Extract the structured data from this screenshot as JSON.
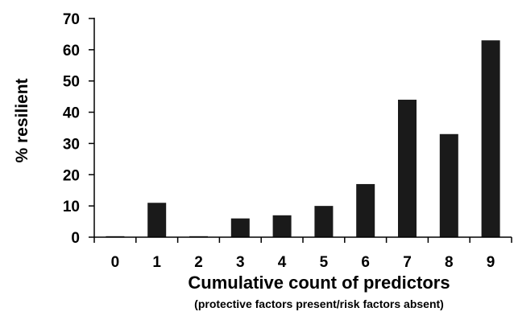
{
  "chart_data": {
    "type": "bar",
    "title": "",
    "xlabel": "Cumulative count of predictors",
    "xlabel_sub": "(protective factors present/risk factors absent)",
    "ylabel": "% resilient",
    "categories": [
      "0",
      "1",
      "2",
      "3",
      "4",
      "5",
      "6",
      "7",
      "8",
      "9"
    ],
    "values": [
      0,
      11,
      0,
      6,
      7,
      10,
      17,
      44,
      33,
      63
    ],
    "ylim": [
      0,
      70
    ],
    "yticks": [
      0,
      10,
      20,
      30,
      40,
      50,
      60,
      70
    ],
    "yticklabels": [
      "0",
      "10",
      "20",
      "30",
      "40",
      "50",
      "60",
      "70"
    ],
    "grid": false,
    "legend": "none",
    "colors": {
      "bar": "#1a1a1a",
      "axis": "#000000",
      "background": "#ffffff"
    }
  }
}
